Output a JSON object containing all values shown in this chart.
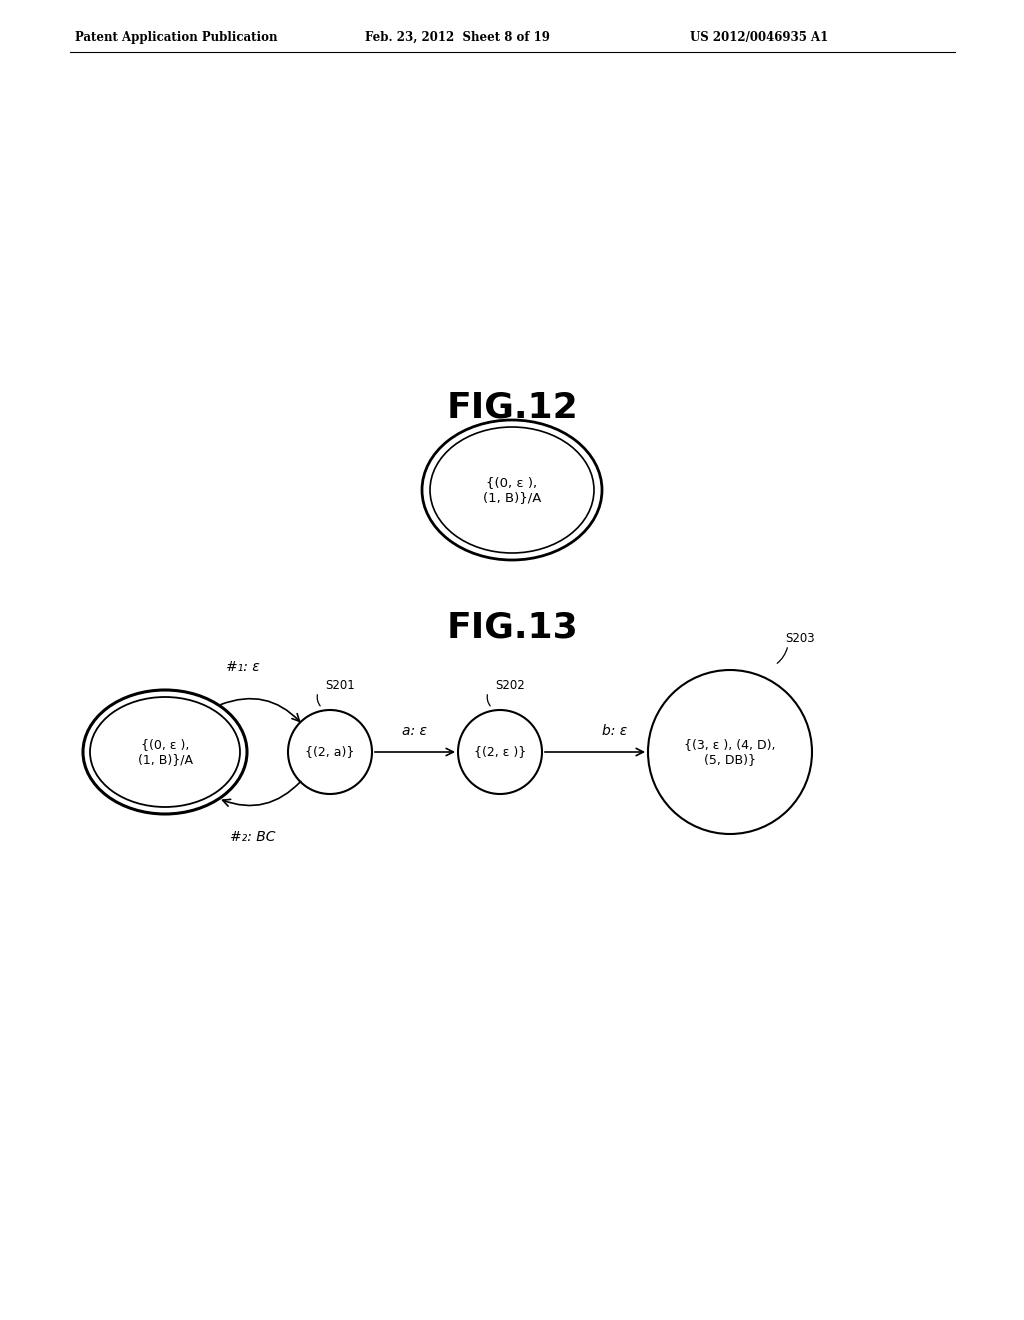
{
  "background_color": "#ffffff",
  "header_left": "Patent Application Publication",
  "header_mid": "Feb. 23, 2012  Sheet 8 of 19",
  "header_right": "US 2012/0046935 A1",
  "fig12_label": "FIG.12",
  "fig13_label": "FIG.13",
  "fig12_node_text": "{(0, ε ),\n(1, B)}/A",
  "node0_text": "{(0, ε ),\n(1, B)}/A",
  "node1_label": "S201",
  "node1_text": "{(2, a)}",
  "node2_label": "S202",
  "node2_text": "{(2, ε )}",
  "node3_label": "S203",
  "node3_text": "{(3, ε ), (4, D),\n(5, DB)}",
  "arrow01_upper": "#₁: ε",
  "arrow01_lower": "#₂: BC",
  "arrow12_label": "a: ε",
  "arrow23_label": "b: ε"
}
